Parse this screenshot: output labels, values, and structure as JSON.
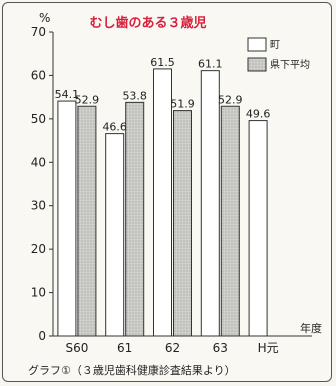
{
  "chart_data": {
    "type": "bar",
    "title": "むし歯のある３歳児",
    "ylabel": "%",
    "xlabel": "年度",
    "ylim": [
      0,
      70
    ],
    "yticks": [
      0,
      10,
      20,
      30,
      40,
      50,
      60,
      70
    ],
    "categories": [
      "S60",
      "61",
      "62",
      "63",
      "H元"
    ],
    "series": [
      {
        "name": "町",
        "color": "#ffffff",
        "values": [
          54.1,
          46.6,
          61.5,
          61.1,
          49.6
        ],
        "labels": [
          "54.1",
          "46.6",
          "61.5",
          "61.1",
          "49.6"
        ]
      },
      {
        "name": "県下平均",
        "color": "#c9c9c7",
        "values": [
          52.9,
          53.8,
          51.9,
          52.9,
          null
        ],
        "labels": [
          "52.9",
          "53.8",
          "51.9",
          "52.9",
          ""
        ]
      }
    ],
    "legend_position": "top-right",
    "grid": false
  },
  "caption": "グラフ①（３歳児歯科健康診査結果より）"
}
